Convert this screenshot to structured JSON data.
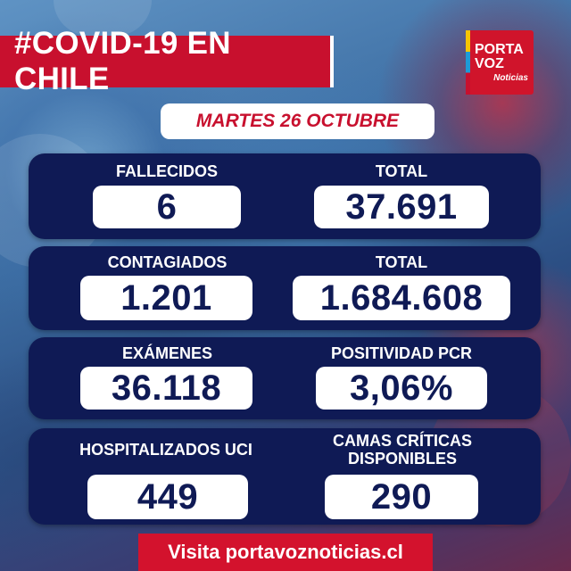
{
  "header": {
    "title": "#COVID-19 EN CHILE"
  },
  "logo": {
    "line1": "PORTA",
    "line2": "VOZ",
    "line3": "Noticias"
  },
  "date": "MARTES 26 OCTUBRE",
  "stats": {
    "fallecidos": {
      "label": "FALLECIDOS",
      "value": "6"
    },
    "fallecidos_total": {
      "label": "TOTAL",
      "value": "37.691"
    },
    "contagiados": {
      "label": "CONTAGIADOS",
      "value": "1.201"
    },
    "contagiados_total": {
      "label": "TOTAL",
      "value": "1.684.608"
    },
    "examenes": {
      "label": "EXÁMENES",
      "value": "36.118"
    },
    "positividad": {
      "label": "POSITIVIDAD PCR",
      "value": "3,06%"
    },
    "uci": {
      "label": "HOSPITALIZADOS UCI",
      "value": "449"
    },
    "camas": {
      "label_line1": "CAMAS CRÍTICAS",
      "label_line2": "DISPONIBLES",
      "value": "290"
    }
  },
  "footer": {
    "text": "Visita portavoznoticias.cl"
  },
  "colors": {
    "brand_red": "#c8102e",
    "navy": "#0f1a55",
    "white": "#ffffff"
  }
}
